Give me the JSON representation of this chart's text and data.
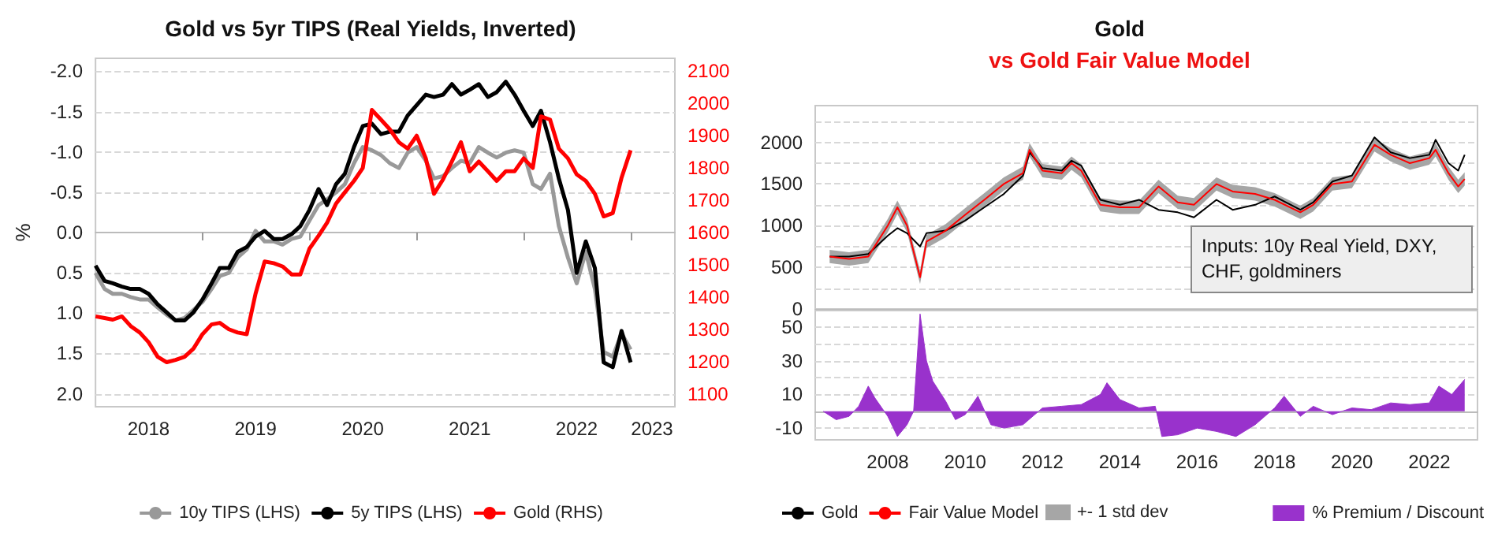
{
  "chart_data": [
    {
      "type": "line",
      "title": "Gold vs 5yr TIPS (Real Yields, Inverted)",
      "ylabel": "%",
      "x": [
        "2018-01",
        "2018-02",
        "2018-03",
        "2018-04",
        "2018-05",
        "2018-06",
        "2018-07",
        "2018-08",
        "2018-09",
        "2018-10",
        "2018-11",
        "2018-12",
        "2019-01",
        "2019-02",
        "2019-03",
        "2019-04",
        "2019-05",
        "2019-06",
        "2019-07",
        "2019-08",
        "2019-09",
        "2019-10",
        "2019-11",
        "2019-12",
        "2020-01",
        "2020-02",
        "2020-03",
        "2020-04",
        "2020-05",
        "2020-06",
        "2020-07",
        "2020-08",
        "2020-09",
        "2020-10",
        "2020-11",
        "2020-12",
        "2021-01",
        "2021-02",
        "2021-03",
        "2021-04",
        "2021-05",
        "2021-06",
        "2021-07",
        "2021-08",
        "2021-09",
        "2021-10",
        "2021-11",
        "2021-12",
        "2022-01",
        "2022-02",
        "2022-03",
        "2022-04",
        "2022-05",
        "2022-06",
        "2022-07",
        "2022-08",
        "2022-09",
        "2022-10",
        "2022-11",
        "2022-12",
        "2023-01"
      ],
      "series": [
        {
          "name": "10y TIPS (LHS)",
          "color": "#999999",
          "values": [
            0.5,
            0.7,
            0.76,
            0.76,
            0.8,
            0.83,
            0.83,
            0.93,
            1.02,
            1.09,
            1.06,
            0.96,
            0.86,
            0.7,
            0.54,
            0.5,
            0.31,
            0.21,
            -0.02,
            0.11,
            0.11,
            0.15,
            0.08,
            0.05,
            -0.15,
            -0.34,
            -0.41,
            -0.5,
            -0.6,
            -0.86,
            -1.06,
            -1.02,
            -0.96,
            -0.86,
            -0.8,
            -0.99,
            -1.06,
            -0.89,
            -0.67,
            -0.7,
            -0.8,
            -0.89,
            -0.86,
            -1.06,
            -0.99,
            -0.93,
            -0.99,
            -1.02,
            -0.99,
            -0.6,
            -0.54,
            -0.73,
            -0.08,
            0.31,
            0.63,
            0.24,
            0.7,
            1.48,
            1.54,
            1.25,
            1.45
          ]
        },
        {
          "name": "5y TIPS (LHS)",
          "color": "#000000",
          "values": [
            0.41,
            0.6,
            0.63,
            0.67,
            0.7,
            0.7,
            0.76,
            0.89,
            0.99,
            1.09,
            1.09,
            0.99,
            0.83,
            0.63,
            0.44,
            0.44,
            0.24,
            0.18,
            0.05,
            -0.02,
            0.08,
            0.08,
            0.02,
            -0.08,
            -0.28,
            -0.54,
            -0.34,
            -0.6,
            -0.73,
            -1.06,
            -1.32,
            -1.35,
            -1.22,
            -1.25,
            -1.25,
            -1.45,
            -1.58,
            -1.71,
            -1.68,
            -1.71,
            -1.84,
            -1.71,
            -1.77,
            -1.84,
            -1.68,
            -1.74,
            -1.87,
            -1.71,
            -1.51,
            -1.32,
            -1.51,
            -1.12,
            -0.67,
            -0.28,
            0.5,
            0.11,
            0.44,
            1.61,
            1.67,
            1.22,
            1.61
          ]
        },
        {
          "name": "Gold (RHS)",
          "color": "#ff0000",
          "axis": "y2",
          "values": [
            1340,
            1335,
            1330,
            1340,
            1310,
            1290,
            1260,
            1215,
            1198,
            1205,
            1215,
            1240,
            1285,
            1315,
            1320,
            1300,
            1290,
            1285,
            1410,
            1510,
            1505,
            1495,
            1470,
            1470,
            1550,
            1590,
            1630,
            1690,
            1725,
            1760,
            1800,
            1980,
            1950,
            1920,
            1880,
            1860,
            1900,
            1830,
            1720,
            1765,
            1820,
            1880,
            1790,
            1820,
            1790,
            1760,
            1790,
            1790,
            1830,
            1800,
            1960,
            1950,
            1860,
            1830,
            1780,
            1760,
            1720,
            1650,
            1660,
            1770,
            1855
          ]
        }
      ],
      "xlim": [
        "2018-01-01",
        "2023-06-01"
      ],
      "xticks": [
        {
          "value": "2018-07-01",
          "label": "2018"
        },
        {
          "value": "2019-01-01",
          "label": null
        },
        {
          "value": "2019-07-01",
          "label": "2019"
        },
        {
          "value": "2020-01-01",
          "label": null
        },
        {
          "value": "2020-07-01",
          "label": "2020"
        },
        {
          "value": "2021-01-01",
          "label": null
        },
        {
          "value": "2021-07-01",
          "label": "2021"
        },
        {
          "value": "2022-01-01",
          "label": null
        },
        {
          "value": "2022-07-01",
          "label": "2022"
        },
        {
          "value": "2023-01-01",
          "label": null
        },
        {
          "value": "2023-03-15",
          "label": "2023"
        }
      ],
      "ylim": [
        2.16,
        -2.16
      ],
      "yticks": [
        {
          "value": -2,
          "label": "-2.0"
        },
        {
          "value": -1.5,
          "label": "-1.5"
        },
        {
          "value": -1,
          "label": "-1.0"
        },
        {
          "value": -0.5,
          "label": "-0.5"
        },
        {
          "value": 0,
          "label": "0.0"
        },
        {
          "value": 0.5,
          "label": "0.5"
        },
        {
          "value": 1,
          "label": "1.0"
        },
        {
          "value": 1.5,
          "label": "1.5"
        },
        {
          "value": 2,
          "label": "2.0"
        }
      ],
      "y2lim": [
        1060,
        2140
      ],
      "y2ticks": [
        1100,
        1200,
        1300,
        1400,
        1500,
        1600,
        1700,
        1800,
        1900,
        2000,
        2100
      ],
      "grid": "y",
      "legend": "bottom"
    },
    {
      "type": "line",
      "title": "Gold",
      "subtitle": "vs Gold Fair Value Model",
      "annotations": [
        "Inputs: 10y Real Yield, DXY, CHF, goldminers",
        "+- 1 std dev"
      ],
      "x": [
        "2006-07",
        "2007-01",
        "2007-07",
        "2008-01",
        "2008-04",
        "2008-07",
        "2008-11",
        "2009-01",
        "2009-07",
        "2010-01",
        "2010-07",
        "2011-01",
        "2011-07",
        "2011-09",
        "2012-01",
        "2012-07",
        "2012-10",
        "2013-01",
        "2013-07",
        "2014-01",
        "2014-07",
        "2015-01",
        "2015-07",
        "2015-12",
        "2016-07",
        "2016-12",
        "2017-07",
        "2018-01",
        "2018-09",
        "2019-01",
        "2019-07",
        "2020-01",
        "2020-08",
        "2021-01",
        "2021-07",
        "2022-01",
        "2022-03",
        "2022-07",
        "2022-10",
        "2022-12"
      ],
      "series": [
        {
          "name": "Gold",
          "color": "#000000",
          "values": [
            630,
            630,
            660,
            880,
            970,
            910,
            750,
            910,
            940,
            1060,
            1220,
            1380,
            1600,
            1880,
            1690,
            1660,
            1780,
            1720,
            1310,
            1250,
            1310,
            1190,
            1160,
            1100,
            1310,
            1190,
            1250,
            1350,
            1190,
            1280,
            1530,
            1600,
            2060,
            1880,
            1810,
            1850,
            2030,
            1750,
            1660,
            1850
          ]
        },
        {
          "name": "Fair Value Model",
          "color": "#ff0000",
          "values": [
            630,
            600,
            630,
            1000,
            1220,
            1000,
            380,
            810,
            940,
            1130,
            1310,
            1500,
            1630,
            1910,
            1660,
            1630,
            1750,
            1660,
            1250,
            1220,
            1220,
            1470,
            1280,
            1250,
            1500,
            1410,
            1380,
            1310,
            1160,
            1250,
            1500,
            1530,
            1970,
            1850,
            1750,
            1810,
            1910,
            1630,
            1470,
            1560
          ],
          "lower": [
            550,
            520,
            550,
            920,
            1140,
            920,
            300,
            730,
            860,
            1050,
            1230,
            1420,
            1550,
            1830,
            1580,
            1550,
            1670,
            1580,
            1170,
            1140,
            1140,
            1390,
            1200,
            1170,
            1420,
            1330,
            1300,
            1230,
            1080,
            1170,
            1420,
            1450,
            1890,
            1770,
            1670,
            1730,
            1830,
            1550,
            1390,
            1480
          ],
          "upper": [
            710,
            680,
            710,
            1080,
            1300,
            1080,
            460,
            890,
            1020,
            1210,
            1390,
            1580,
            1710,
            1990,
            1740,
            1710,
            1830,
            1740,
            1330,
            1300,
            1300,
            1550,
            1360,
            1330,
            1580,
            1490,
            1460,
            1390,
            1240,
            1330,
            1580,
            1610,
            2050,
            1930,
            1830,
            1890,
            1990,
            1710,
            1550,
            1640
          ]
        }
      ],
      "xlim": [
        "2006-02-15",
        "2023-04-01"
      ],
      "xticks": [
        {
          "value": "2008-01-01",
          "label": "2008"
        },
        {
          "value": "2010-01-01",
          "label": "2010"
        },
        {
          "value": "2012-01-01",
          "label": "2012"
        },
        {
          "value": "2014-01-01",
          "label": "2014"
        },
        {
          "value": "2016-01-01",
          "label": "2016"
        },
        {
          "value": "2018-01-01",
          "label": "2018"
        },
        {
          "value": "2020-01-01",
          "label": "2020"
        },
        {
          "value": "2022-01-01",
          "label": "2022"
        }
      ],
      "ylim": [
        0,
        2440
      ],
      "yticks": [
        0,
        {
          "value": 250,
          "label": null
        },
        500,
        {
          "value": 750,
          "label": null
        },
        1000,
        {
          "value": 1250,
          "label": null
        },
        1500,
        {
          "value": 1750,
          "label": null
        },
        2000,
        {
          "value": 2250,
          "label": null
        }
      ],
      "tick_labels": "y",
      "grid": "y",
      "legend": "bottom"
    },
    {
      "type": "area",
      "x": [
        "2006-05",
        "2006-09",
        "2007-01",
        "2007-04",
        "2007-07",
        "2007-09",
        "2008-01",
        "2008-04",
        "2008-07",
        "2008-09",
        "2008-11",
        "2009-01",
        "2009-03",
        "2009-07",
        "2009-10",
        "2010-01",
        "2010-05",
        "2010-09",
        "2011-01",
        "2011-07",
        "2012-01",
        "2012-07",
        "2013-01",
        "2013-07",
        "2013-09",
        "2014-01",
        "2014-07",
        "2014-12",
        "2015-02",
        "2015-07",
        "2016-01",
        "2016-07",
        "2017-01",
        "2017-07",
        "2018-01",
        "2018-04",
        "2018-09",
        "2019-01",
        "2019-07",
        "2020-01",
        "2020-07",
        "2021-01",
        "2021-07",
        "2022-01",
        "2022-04",
        "2022-08",
        "2022-12"
      ],
      "series": [
        {
          "name": "% Premium / Discount",
          "color": "#9932cc",
          "values": [
            0,
            -5,
            -3,
            3,
            15,
            8,
            -3,
            -15,
            -8,
            0,
            58,
            30,
            18,
            6,
            -5,
            -2,
            9,
            -8,
            -10,
            -8,
            2,
            3,
            4,
            10,
            17,
            7,
            2,
            3,
            -15,
            -14,
            -10,
            -12,
            -15,
            -8,
            2,
            9,
            -3,
            3,
            -2,
            2,
            1,
            5,
            4,
            5,
            15,
            10,
            19
          ]
        }
      ],
      "xlim": [
        "2006-02-15",
        "2023-04-01"
      ],
      "xticks": [
        {
          "value": "2008-01-01",
          "label": "2008"
        },
        {
          "value": "2010-01-01",
          "label": "2010"
        },
        {
          "value": "2012-01-01",
          "label": "2012"
        },
        {
          "value": "2014-01-01",
          "label": "2014"
        },
        {
          "value": "2016-01-01",
          "label": "2016"
        },
        {
          "value": "2018-01-01",
          "label": "2018"
        },
        {
          "value": "2020-01-01",
          "label": "2020"
        },
        {
          "value": "2022-01-01",
          "label": "2022"
        }
      ],
      "ylim": [
        -17,
        60
      ],
      "yticks": [
        -10,
        {
          "value": 0,
          "label": null
        },
        10,
        {
          "value": 20,
          "label": null
        },
        30,
        {
          "value": 40,
          "label": null
        },
        50
      ],
      "grid": "y",
      "legend": "bottom"
    }
  ]
}
